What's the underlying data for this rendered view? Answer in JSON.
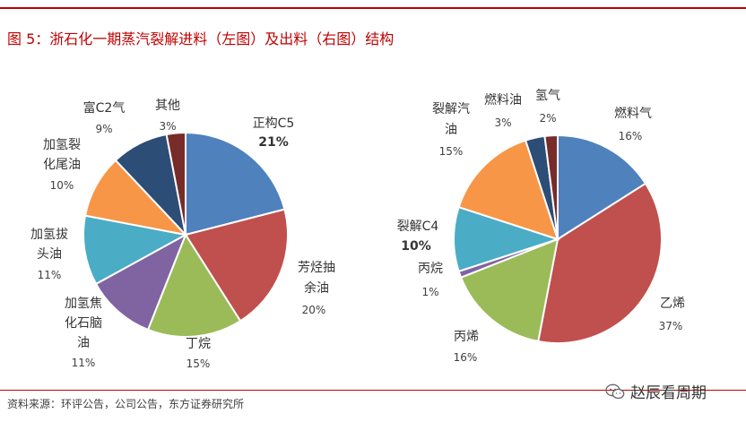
{
  "header": {
    "title": "图 5：浙石化一期蒸汽裂解进料（左图）及出料（右图）结构"
  },
  "footer": {
    "source": "资料来源：环评公告，公司公告，东方证券研究所",
    "brand": "赵辰看周期"
  },
  "chart_data": [
    {
      "type": "pie",
      "title": "",
      "slices": [
        {
          "label": "正构C5",
          "value": 21,
          "pct_text": "21%",
          "color": "#4f81bd"
        },
        {
          "label": "芳烃抽余油",
          "value": 20,
          "pct_text": "20%",
          "color": "#c0504d"
        },
        {
          "label": "丁烷",
          "value": 15,
          "pct_text": "15%",
          "color": "#9bbb59"
        },
        {
          "label": "加氢焦化石脑油",
          "value": 11,
          "pct_text": "11%",
          "color": "#8064a2"
        },
        {
          "label": "加氢拔头油",
          "value": 11,
          "pct_text": "11%",
          "color": "#4bacc6"
        },
        {
          "label": "加氢裂化尾油",
          "value": 10,
          "pct_text": "10%",
          "color": "#f79646"
        },
        {
          "label": "富C2气",
          "value": 9,
          "pct_text": "9%",
          "color": "#2c4d75"
        },
        {
          "label": "其他",
          "value": 3,
          "pct_text": "3%",
          "color": "#772c2a"
        }
      ]
    },
    {
      "type": "pie",
      "title": "",
      "slices": [
        {
          "label": "燃料气",
          "value": 16,
          "pct_text": "16%",
          "color": "#4f81bd"
        },
        {
          "label": "乙烯",
          "value": 37,
          "pct_text": "37%",
          "color": "#c0504d"
        },
        {
          "label": "丙烯",
          "value": 16,
          "pct_text": "16%",
          "color": "#9bbb59"
        },
        {
          "label": "丙烷",
          "value": 1,
          "pct_text": "1%",
          "color": "#8064a2"
        },
        {
          "label": "裂解C4",
          "value": 10,
          "pct_text": "10%",
          "color": "#4bacc6"
        },
        {
          "label": "裂解汽油",
          "value": 15,
          "pct_text": "15%",
          "color": "#f79646"
        },
        {
          "label": "燃料油",
          "value": 3,
          "pct_text": "3%",
          "color": "#2c4d75"
        },
        {
          "label": "氢气",
          "value": 2,
          "pct_text": "2%",
          "color": "#772c2a"
        }
      ]
    }
  ]
}
